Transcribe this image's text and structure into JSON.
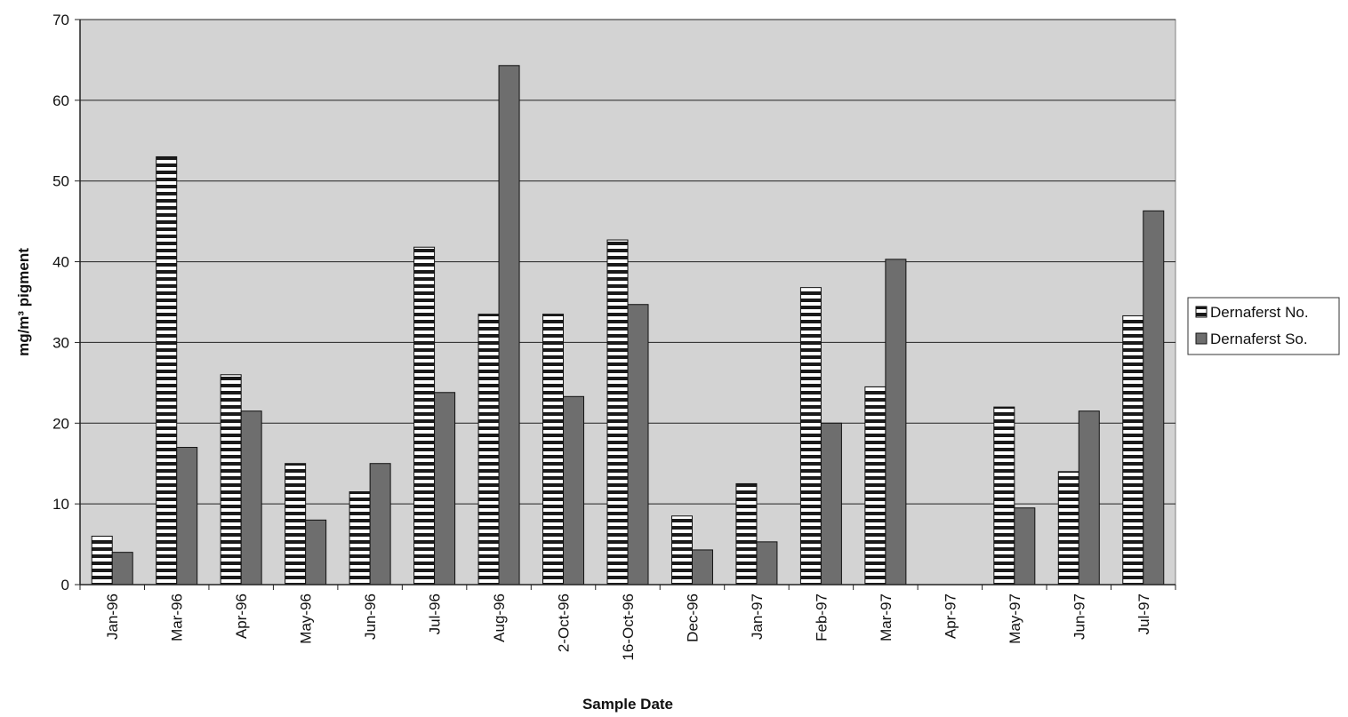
{
  "chart_data": {
    "type": "bar",
    "title": "",
    "xlabel": "Sample Date",
    "ylabel": "mg/m³ pigment",
    "ylim": [
      0,
      70
    ],
    "yticks": [
      0,
      10,
      20,
      30,
      40,
      50,
      60,
      70
    ],
    "grid": true,
    "legend_position": "right",
    "categories": [
      "Jan-96",
      "Mar-96",
      "Apr-96",
      "May-96",
      "Jun-96",
      "Jul-96",
      "Aug-96",
      "2-Oct-96",
      "16-Oct-96",
      "Dec-96",
      "Jan-97",
      "Feb-97",
      "Mar-97",
      "Apr-97",
      "May-97",
      "Jun-97",
      "Jul-97"
    ],
    "series": [
      {
        "name": "Dernaferst No.",
        "pattern": "horizontal-stripes",
        "color": "#1a1a1a",
        "values": [
          6,
          53,
          26,
          15,
          11.5,
          41.8,
          33.5,
          33.5,
          42.7,
          8.5,
          12.5,
          36.8,
          24.5,
          0,
          22,
          14,
          33.3
        ]
      },
      {
        "name": "Dernaferst So.",
        "pattern": "solid",
        "color": "#6e6e6e",
        "values": [
          4,
          17,
          21.5,
          8,
          15,
          23.8,
          64.3,
          23.3,
          34.7,
          4.3,
          5.3,
          20,
          40.3,
          0,
          9.5,
          21.5,
          46.3
        ]
      }
    ]
  }
}
